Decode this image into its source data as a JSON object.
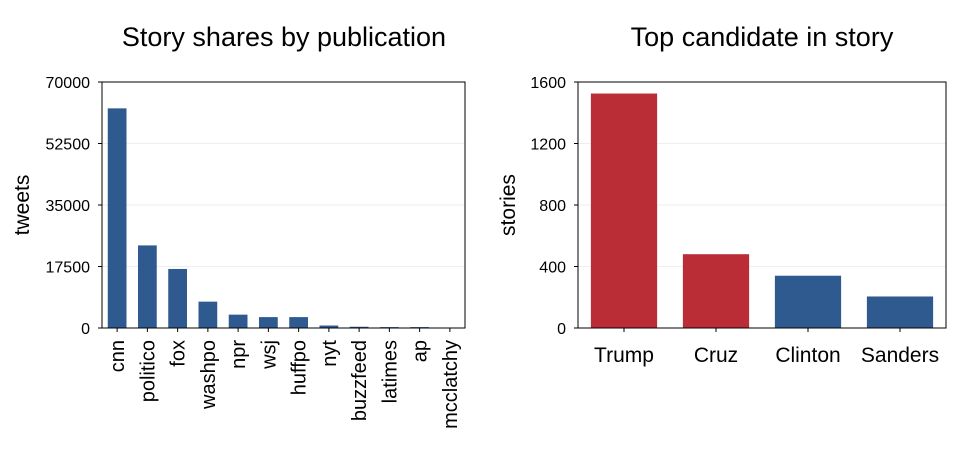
{
  "chart_data": [
    {
      "type": "bar",
      "title": "Story shares by publication",
      "xlabel": "",
      "ylabel": "tweets",
      "ylim": [
        0,
        70000
      ],
      "yticks": [
        "0",
        "17500",
        "35000",
        "52500",
        "70000"
      ],
      "grid": true,
      "categories": [
        "cnn",
        "politico",
        "fox",
        "washpo",
        "npr",
        "wsj",
        "huffpo",
        "nyt",
        "buzzfeed",
        "latimes",
        "ap",
        "mcclatchy"
      ],
      "values": [
        62500,
        23500,
        16800,
        7500,
        3800,
        3100,
        3100,
        700,
        350,
        250,
        250,
        50
      ],
      "colors": [
        "#2e5a8f",
        "#2e5a8f",
        "#2e5a8f",
        "#2e5a8f",
        "#2e5a8f",
        "#2e5a8f",
        "#2e5a8f",
        "#2e5a8f",
        "#2e5a8f",
        "#2e5a8f",
        "#2e5a8f",
        "#2e5a8f"
      ]
    },
    {
      "type": "bar",
      "title": "Top candidate in story",
      "xlabel": "",
      "ylabel": "stories",
      "ylim": [
        0,
        1600
      ],
      "yticks": [
        "0",
        "400",
        "800",
        "1200",
        "1600"
      ],
      "grid": true,
      "categories": [
        "Trump",
        "Cruz",
        "Clinton",
        "Sanders"
      ],
      "values": [
        1525,
        480,
        340,
        205
      ],
      "colors": [
        "#bb2d36",
        "#bb2d36",
        "#2e5a8f",
        "#2e5a8f"
      ]
    }
  ]
}
